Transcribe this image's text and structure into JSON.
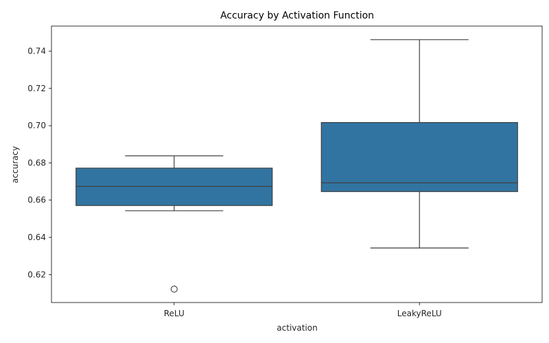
{
  "chart_data": {
    "type": "box",
    "title": "Accuracy by Activation Function",
    "xlabel": "activation",
    "ylabel": "accuracy",
    "categories": [
      "ReLU",
      "LeakyReLU"
    ],
    "ylim": [
      0.605,
      0.7535
    ],
    "yticks": [
      0.62,
      0.64,
      0.66,
      0.68,
      0.7,
      0.72,
      0.74
    ],
    "ytick_labels": [
      "0.62",
      "0.64",
      "0.66",
      "0.68",
      "0.70",
      "0.72",
      "0.74"
    ],
    "boxes": [
      {
        "category": "ReLU",
        "whisker_low": 0.6543,
        "q1": 0.6571,
        "median": 0.6674,
        "q3": 0.6772,
        "whisker_high": 0.6838,
        "outliers": [
          0.6122
        ]
      },
      {
        "category": "LeakyReLU",
        "whisker_low": 0.6343,
        "q1": 0.6646,
        "median": 0.6693,
        "q3": 0.7017,
        "whisker_high": 0.7462,
        "outliers": []
      }
    ],
    "grid": false,
    "legend": "none",
    "colors": {
      "box_fill": "#3274a1",
      "line": "#3f3f3f",
      "axis": "#000000"
    }
  }
}
